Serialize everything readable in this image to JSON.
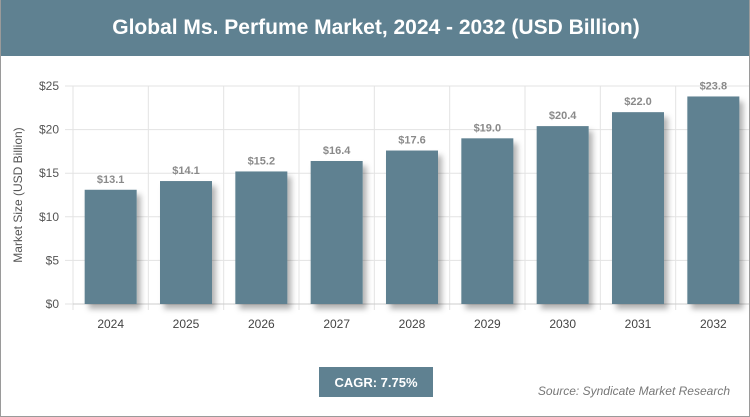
{
  "title": "Global Ms. Perfume Market, 2024 - 2032 (USD Billion)",
  "cagr": "CAGR: 7.75%",
  "source": "Source: Syndicate Market Research",
  "colors": {
    "bar": "#5f8191",
    "title_bg": "#5f8191"
  },
  "chart_data": {
    "type": "bar",
    "title": "Global Ms. Perfume Market, 2024 - 2032 (USD Billion)",
    "xlabel": "",
    "ylabel": "Market Size (USD Billion)",
    "categories": [
      "2024",
      "2025",
      "2026",
      "2027",
      "2028",
      "2029",
      "2030",
      "2031",
      "2032"
    ],
    "values": [
      13.1,
      14.1,
      15.2,
      16.4,
      17.6,
      19.0,
      20.4,
      22.0,
      23.8
    ],
    "data_labels": [
      "$13.1",
      "$14.1",
      "$15.2",
      "$16.4",
      "$17.6",
      "$19.0",
      "$20.4",
      "$22.0",
      "$23.8"
    ],
    "ylim": [
      0,
      25
    ],
    "yticks": [
      0,
      5,
      10,
      15,
      20,
      25
    ],
    "ytick_labels": [
      "$0",
      "$5",
      "$10",
      "$15",
      "$20",
      "$25"
    ],
    "grid": true,
    "legend": "none"
  }
}
